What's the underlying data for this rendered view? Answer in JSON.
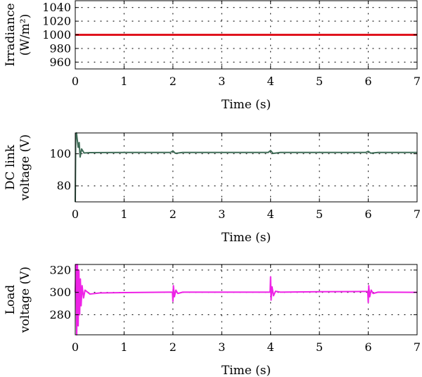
{
  "chart_data": [
    {
      "type": "line",
      "xlabel": "Time (s)",
      "ylabel_lines": [
        "Irradiance",
        "(W/m²)"
      ],
      "xlim": [
        0,
        7
      ],
      "ylim": [
        950,
        1050
      ],
      "x_ticks": [
        0,
        1,
        2,
        3,
        4,
        5,
        6,
        7
      ],
      "y_ticks": [
        960,
        980,
        1000,
        1020,
        1040
      ],
      "grid": true,
      "series": [
        {
          "color": "#e0141e",
          "x": [
            0,
            7
          ],
          "y": [
            1000,
            1000
          ]
        }
      ]
    },
    {
      "type": "line",
      "xlabel": "Time (s)",
      "ylabel_lines": [
        "DC link",
        "voltage (V)"
      ],
      "xlim": [
        0,
        7
      ],
      "ylim": [
        70,
        113
      ],
      "x_ticks": [
        0,
        1,
        2,
        3,
        4,
        5,
        6,
        7
      ],
      "y_ticks": [
        80,
        100
      ],
      "grid": true,
      "series": [
        {
          "color": "#3e6b56",
          "x": [
            0,
            0.01,
            0.025,
            0.04,
            0.06,
            0.08,
            0.1,
            0.13,
            0.18,
            0.3,
            1.0,
            1.95,
            2.0,
            2.05,
            2.2,
            3.0,
            3.95,
            4.0,
            4.05,
            4.2,
            5.0,
            5.95,
            6.0,
            6.05,
            6.2,
            7.0
          ],
          "y": [
            70,
            112,
            113,
            109,
            104,
            107,
            98,
            103,
            100.5,
            100.7,
            100.8,
            100.8,
            101.8,
            100.3,
            100.8,
            100.8,
            100.8,
            102.0,
            100.2,
            100.8,
            100.8,
            100.8,
            101.5,
            100.4,
            100.8,
            100.8
          ]
        }
      ]
    },
    {
      "type": "line",
      "xlabel": "Time (s)",
      "ylabel_lines": [
        "Load",
        "voltage (V)"
      ],
      "xlim": [
        0,
        7
      ],
      "ylim": [
        262,
        325
      ],
      "x_ticks": [
        0,
        1,
        2,
        3,
        4,
        5,
        6,
        7
      ],
      "y_ticks": [
        280,
        300,
        320
      ],
      "grid": true,
      "series": [
        {
          "color": "#ee22e6",
          "x": [
            0,
            0.015,
            0.03,
            0.045,
            0.06,
            0.075,
            0.09,
            0.105,
            0.12,
            0.14,
            0.17,
            0.2,
            0.3,
            0.5,
            1.0,
            1.9,
            1.99,
            2.0,
            2.01,
            2.03,
            2.06,
            2.1,
            2.2,
            3.0,
            3.9,
            3.99,
            4.0,
            4.01,
            4.03,
            4.06,
            4.1,
            4.2,
            5.0,
            5.9,
            5.99,
            6.0,
            6.01,
            6.03,
            6.06,
            6.1,
            6.2,
            7.0
          ],
          "y": [
            300,
            325,
            262,
            325,
            270,
            320,
            280,
            312,
            288,
            306,
            295,
            302,
            298.5,
            299.5,
            299.8,
            300.2,
            300.2,
            292,
            306,
            296,
            302,
            299,
            300.2,
            300.2,
            300.2,
            300.2,
            314,
            293,
            305,
            297,
            301,
            300.2,
            300.6,
            300.8,
            300.8,
            291,
            306,
            296,
            302,
            299,
            300.2,
            300
          ]
        }
      ]
    }
  ]
}
